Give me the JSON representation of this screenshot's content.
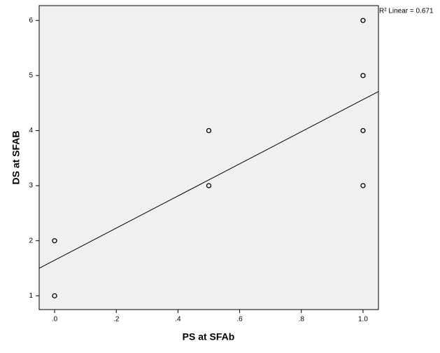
{
  "chart_data": {
    "type": "scatter",
    "x_label": "PS at SFAb",
    "y_label": "DS at SFAB",
    "annotation": "R² Linear = 0.671",
    "x": [
      0,
      0,
      0.5,
      0.5,
      1,
      1,
      1,
      1
    ],
    "y": [
      1,
      2,
      3,
      4,
      3,
      4,
      5,
      6
    ],
    "fit_line": {
      "x": [
        -0.05,
        1.05
      ],
      "y": [
        1.5,
        4.71
      ]
    },
    "xlim": [
      -0.05,
      1.05
    ],
    "ylim": [
      0.75,
      6.27
    ],
    "xticks": [
      {
        "value": 0,
        "label": ".0"
      },
      {
        "value": 0.2,
        "label": ".2"
      },
      {
        "value": 0.4,
        "label": ".4"
      },
      {
        "value": 0.6,
        "label": ".6"
      },
      {
        "value": 0.8,
        "label": ".8"
      },
      {
        "value": 1,
        "label": "1.0"
      }
    ],
    "yticks": [
      1,
      2,
      3,
      4,
      5,
      6
    ],
    "plot_background": "#f0f0f0",
    "color": "#000000"
  }
}
